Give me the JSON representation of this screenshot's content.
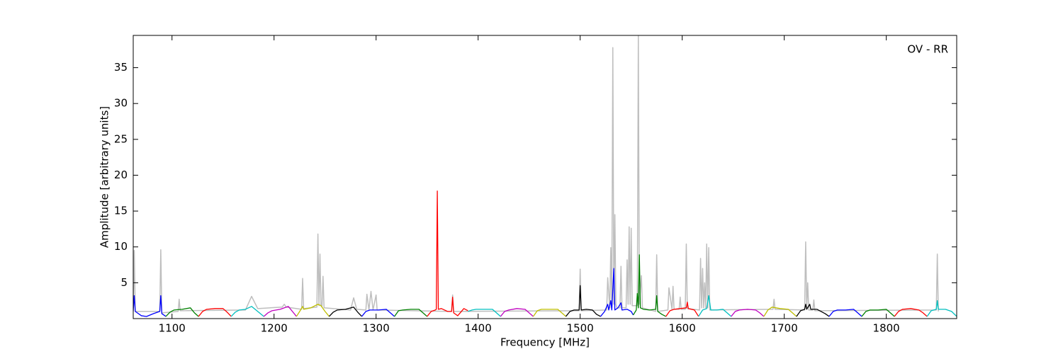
{
  "chart_data": {
    "type": "line",
    "annotation": "OV - RR",
    "xlabel": "Frequency [MHz]",
    "ylabel": "Amplitude [arbitrary units]",
    "xlim": [
      1062,
      1869
    ],
    "ylim": [
      0,
      39.5
    ],
    "xticks": [
      1100,
      1200,
      1300,
      1400,
      1500,
      1600,
      1700,
      1800
    ],
    "yticks": [
      5,
      10,
      15,
      20,
      25,
      30,
      35
    ],
    "grid": false,
    "series": [
      {
        "color": "#bebebe",
        "x": [
          1062,
          1063,
          1064,
          1088,
          1089,
          1090,
          1106,
          1107,
          1108,
          1172,
          1178,
          1184,
          1208,
          1210,
          1212,
          1227,
          1228,
          1229,
          1242,
          1243,
          1244,
          1245,
          1246,
          1247,
          1248,
          1249,
          1275,
          1278,
          1281,
          1290,
          1291,
          1293,
          1295,
          1297,
          1300,
          1301,
          1374,
          1375,
          1376,
          1499,
          1500,
          1501,
          1526,
          1527,
          1529,
          1530,
          1531,
          1532,
          1533,
          1534,
          1535,
          1536,
          1539,
          1540,
          1541,
          1545,
          1546,
          1547,
          1548,
          1549,
          1550,
          1551,
          1556,
          1557,
          1558,
          1560,
          1561,
          1574,
          1575,
          1576,
          1586,
          1587,
          1590,
          1591,
          1592,
          1597,
          1598,
          1599,
          1603,
          1604,
          1605,
          1617,
          1618,
          1619,
          1620,
          1621,
          1622,
          1623,
          1624,
          1625,
          1626,
          1627,
          1689,
          1690,
          1691,
          1720,
          1721,
          1722,
          1723,
          1724,
          1728,
          1729,
          1730,
          1849,
          1850,
          1851
        ],
        "values": [
          1.5,
          9.5,
          1.0,
          1.0,
          9.6,
          0.8,
          1.0,
          2.7,
          1.1,
          1.2,
          3.1,
          1.4,
          1.6,
          2.0,
          1.6,
          1.3,
          5.6,
          1.4,
          1.6,
          11.8,
          1.8,
          9.0,
          1.8,
          1.7,
          5.9,
          1.5,
          1.2,
          2.9,
          1.3,
          1.2,
          3.4,
          1.2,
          3.8,
          1.2,
          3.3,
          1.2,
          1.0,
          3.3,
          1.0,
          1.1,
          6.9,
          1.1,
          1.2,
          5.7,
          1.5,
          9.9,
          1.8,
          37.8,
          2.0,
          14.5,
          2.0,
          1.5,
          1.5,
          7.3,
          1.5,
          1.5,
          8.2,
          2.0,
          12.8,
          2.0,
          12.6,
          1.8,
          1.8,
          39.5,
          2.0,
          6.0,
          1.5,
          1.0,
          8.9,
          1.0,
          1.2,
          4.3,
          1.3,
          4.5,
          1.3,
          1.3,
          3.0,
          1.3,
          1.3,
          10.4,
          1.4,
          1.2,
          8.4,
          1.5,
          7.0,
          1.5,
          5.0,
          1.5,
          10.4,
          1.5,
          9.9,
          1.2,
          1.3,
          2.7,
          1.3,
          1.2,
          10.7,
          1.5,
          5.0,
          1.2,
          1.2,
          2.6,
          1.1,
          1.2,
          9.0,
          1.0
        ]
      },
      {
        "color": "#0000ff",
        "x": [
          1062,
          1063,
          1064,
          1066,
          1070,
          1075,
          1082,
          1088,
          1089,
          1090,
          1094
        ],
        "values": [
          1.0,
          3.2,
          1.0,
          0.8,
          0.4,
          0.3,
          0.7,
          1.0,
          3.2,
          0.7,
          0.3
        ]
      },
      {
        "color": "#008000",
        "x": [
          1094,
          1098,
          1102,
          1110,
          1118,
          1122,
          1126
        ],
        "values": [
          0.3,
          0.9,
          1.2,
          1.3,
          1.5,
          0.8,
          0.3
        ]
      },
      {
        "color": "#ff0000",
        "x": [
          1126,
          1130,
          1134,
          1142,
          1150,
          1154,
          1158
        ],
        "values": [
          0.3,
          1.0,
          1.3,
          1.4,
          1.4,
          0.9,
          0.3
        ]
      },
      {
        "color": "#00bfbf",
        "x": [
          1158,
          1162,
          1166,
          1172,
          1178,
          1184,
          1190
        ],
        "values": [
          0.3,
          0.9,
          1.2,
          1.3,
          1.7,
          1.0,
          0.3
        ]
      },
      {
        "color": "#bf00bf",
        "x": [
          1190,
          1194,
          1198,
          1206,
          1214,
          1218,
          1222
        ],
        "values": [
          0.3,
          0.8,
          1.1,
          1.3,
          1.7,
          1.0,
          0.3
        ]
      },
      {
        "color": "#bfbf00",
        "x": [
          1222,
          1226,
          1228,
          1229,
          1236,
          1243,
          1246,
          1250,
          1254
        ],
        "values": [
          0.3,
          1.2,
          1.7,
          1.3,
          1.5,
          2.0,
          1.8,
          1.0,
          0.3
        ]
      },
      {
        "color": "#000000",
        "x": [
          1254,
          1258,
          1262,
          1270,
          1278,
          1282,
          1286
        ],
        "values": [
          0.3,
          0.9,
          1.2,
          1.3,
          1.6,
          0.9,
          0.3
        ]
      },
      {
        "color": "#0000ff",
        "x": [
          1286,
          1290,
          1294,
          1302,
          1310,
          1314,
          1318
        ],
        "values": [
          0.3,
          1.0,
          1.2,
          1.2,
          1.3,
          0.8,
          0.3
        ]
      },
      {
        "color": "#008000",
        "x": [
          1318,
          1322,
          1326,
          1334,
          1342,
          1346,
          1350
        ],
        "values": [
          0.3,
          1.1,
          1.2,
          1.3,
          1.3,
          0.8,
          0.3
        ]
      },
      {
        "color": "#ff0000",
        "x": [
          1350,
          1354,
          1358,
          1359,
          1360,
          1361,
          1364,
          1370,
          1374,
          1375,
          1376,
          1380,
          1386,
          1390
        ],
        "values": [
          0.3,
          1.0,
          1.2,
          1.3,
          17.8,
          1.3,
          1.4,
          1.0,
          1.0,
          3.0,
          0.8,
          0.4,
          1.4,
          1.1
        ]
      },
      {
        "color": "#00bfbf",
        "x": [
          1390,
          1394,
          1398,
          1406,
          1414,
          1418,
          1422
        ],
        "values": [
          1.0,
          1.2,
          1.3,
          1.3,
          1.3,
          0.8,
          0.3
        ]
      },
      {
        "color": "#bf00bf",
        "x": [
          1422,
          1426,
          1430,
          1438,
          1446,
          1450,
          1454
        ],
        "values": [
          0.3,
          1.0,
          1.2,
          1.4,
          1.3,
          0.8,
          0.3
        ]
      },
      {
        "color": "#bfbf00",
        "x": [
          1454,
          1458,
          1462,
          1470,
          1478,
          1482,
          1486
        ],
        "values": [
          0.3,
          1.1,
          1.3,
          1.3,
          1.3,
          0.8,
          0.3
        ]
      },
      {
        "color": "#000000",
        "x": [
          1486,
          1490,
          1494,
          1499,
          1500,
          1501,
          1506,
          1512,
          1516,
          1520
        ],
        "values": [
          0.3,
          1.0,
          1.2,
          1.2,
          4.6,
          1.2,
          1.3,
          1.2,
          0.6,
          0.3
        ]
      },
      {
        "color": "#0000ff",
        "x": [
          1520,
          1524,
          1527,
          1528,
          1530,
          1531,
          1533,
          1534,
          1537,
          1540,
          1541,
          1546,
          1550,
          1552
        ],
        "values": [
          0.3,
          1.0,
          2.0,
          1.2,
          2.5,
          1.2,
          7.0,
          1.2,
          1.5,
          2.2,
          1.2,
          1.3,
          1.0,
          0.5
        ]
      },
      {
        "color": "#008000",
        "x": [
          1552,
          1555,
          1556,
          1557,
          1558,
          1559,
          1562,
          1568,
          1574,
          1575,
          1576,
          1580,
          1584
        ],
        "values": [
          0.5,
          1.2,
          3.5,
          1.5,
          8.9,
          1.5,
          1.3,
          1.2,
          1.3,
          3.2,
          1.0,
          0.6,
          0.3
        ]
      },
      {
        "color": "#ff0000",
        "x": [
          1584,
          1588,
          1592,
          1598,
          1604,
          1605,
          1606,
          1612,
          1616
        ],
        "values": [
          0.3,
          1.1,
          1.3,
          1.4,
          1.5,
          2.3,
          1.4,
          1.2,
          0.3
        ]
      },
      {
        "color": "#00bfbf",
        "x": [
          1616,
          1620,
          1624,
          1626,
          1628,
          1634,
          1640,
          1644,
          1648
        ],
        "values": [
          0.3,
          1.2,
          1.4,
          3.2,
          1.2,
          1.2,
          1.3,
          0.8,
          0.3
        ]
      },
      {
        "color": "#bf00bf",
        "x": [
          1648,
          1652,
          1656,
          1664,
          1672,
          1676,
          1680
        ],
        "values": [
          0.3,
          1.0,
          1.2,
          1.3,
          1.2,
          0.8,
          0.3
        ]
      },
      {
        "color": "#bfbf00",
        "x": [
          1680,
          1684,
          1688,
          1696,
          1704,
          1708,
          1712
        ],
        "values": [
          0.3,
          1.2,
          1.6,
          1.4,
          1.3,
          0.8,
          0.3
        ]
      },
      {
        "color": "#000000",
        "x": [
          1712,
          1716,
          1720,
          1721,
          1722,
          1725,
          1726,
          1727,
          1732,
          1740,
          1744
        ],
        "values": [
          0.3,
          1.1,
          1.3,
          2.0,
          1.3,
          2.0,
          1.3,
          1.3,
          1.3,
          0.7,
          0.3
        ]
      },
      {
        "color": "#0000ff",
        "x": [
          1744,
          1748,
          1752,
          1760,
          1768,
          1772,
          1776
        ],
        "values": [
          0.3,
          1.0,
          1.2,
          1.2,
          1.3,
          0.8,
          0.3
        ]
      },
      {
        "color": "#008000",
        "x": [
          1776,
          1780,
          1784,
          1792,
          1800,
          1804,
          1808
        ],
        "values": [
          0.3,
          1.0,
          1.2,
          1.2,
          1.3,
          0.8,
          0.3
        ]
      },
      {
        "color": "#ff0000",
        "x": [
          1808,
          1812,
          1816,
          1824,
          1832,
          1836,
          1840
        ],
        "values": [
          0.3,
          1.0,
          1.3,
          1.4,
          1.2,
          0.8,
          0.3
        ]
      },
      {
        "color": "#00bfbf",
        "x": [
          1840,
          1844,
          1849,
          1850,
          1851,
          1858,
          1864,
          1869
        ],
        "values": [
          0.3,
          1.1,
          1.3,
          2.5,
          1.3,
          1.3,
          1.0,
          0.3
        ]
      }
    ]
  }
}
